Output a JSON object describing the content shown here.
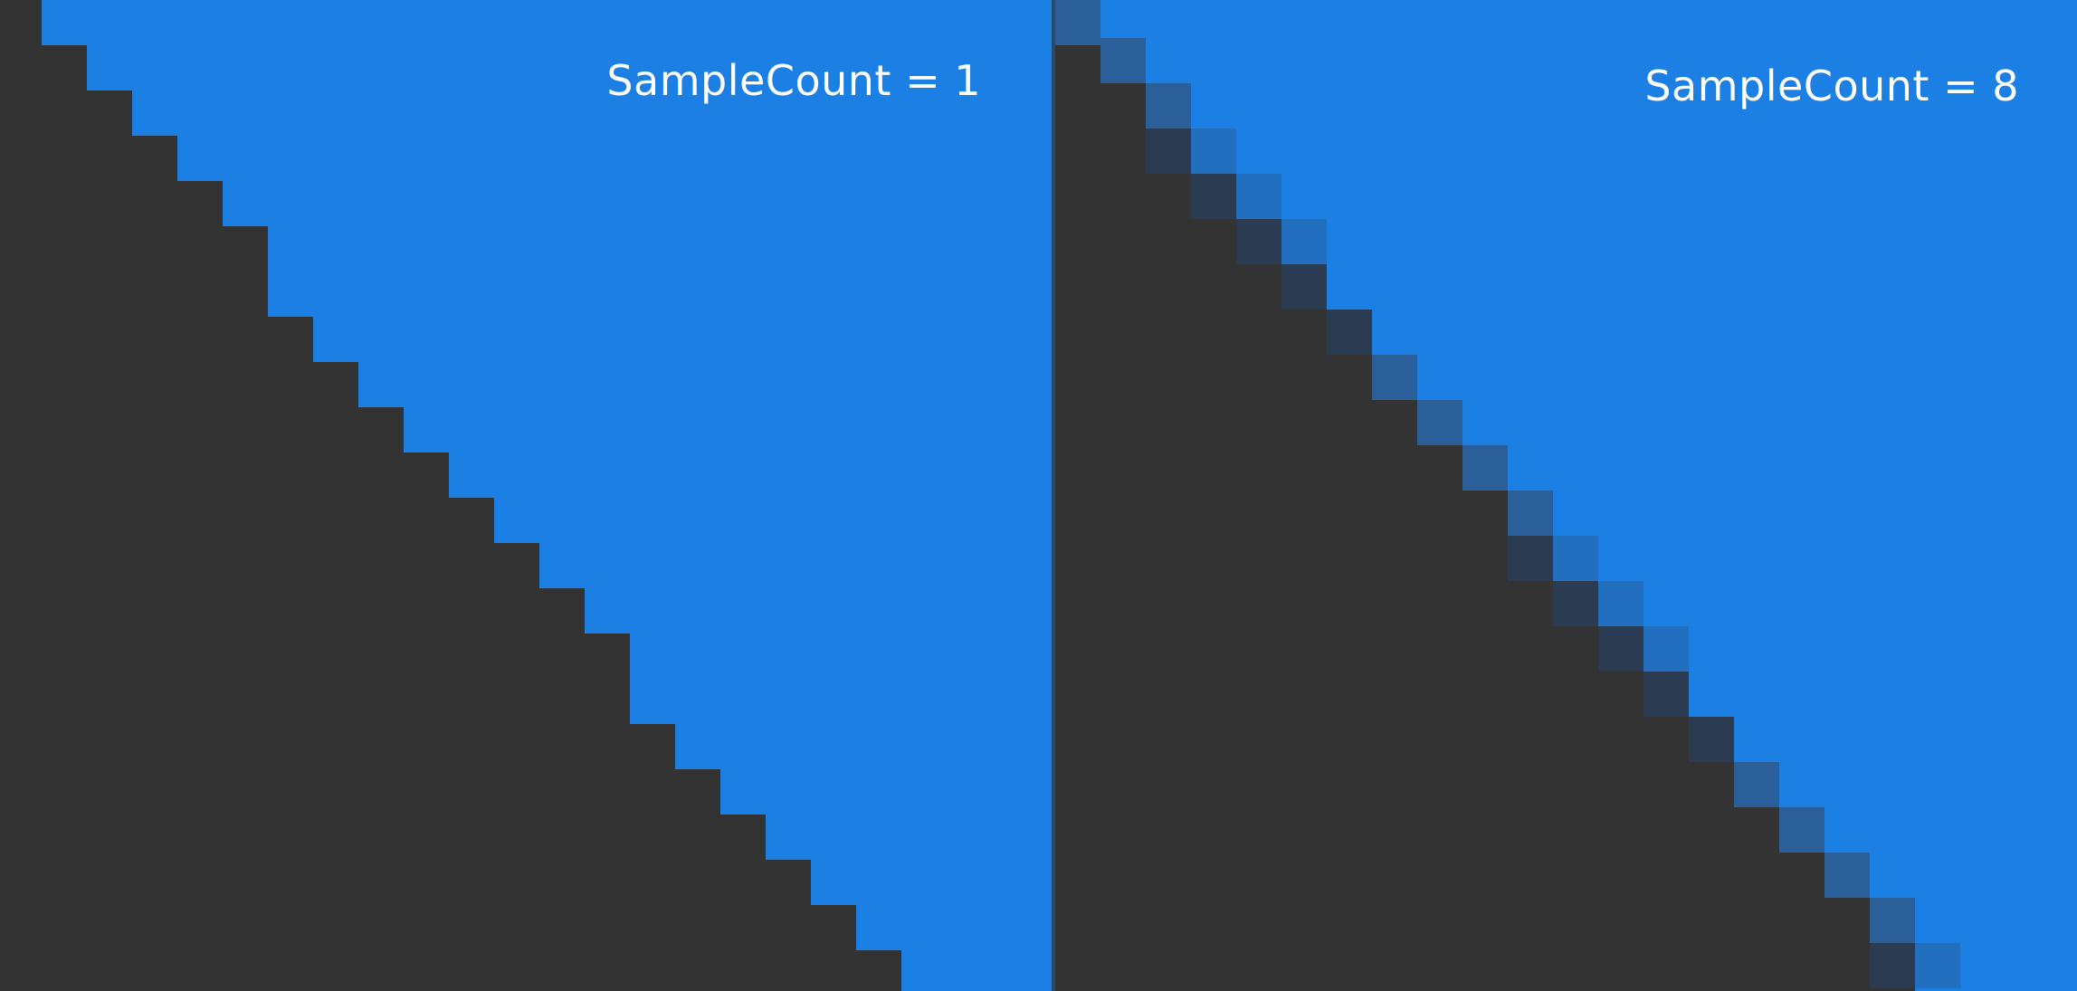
{
  "panels": [
    {
      "label": "SampleCount = 1"
    },
    {
      "label": "SampleCount = 8"
    }
  ],
  "colors": {
    "background": "#1b7fe3",
    "shape_fill": "#333333",
    "divider": "#2a4a6c",
    "edge_dark": "#2b3b52",
    "edge_mid": "#2a5f99",
    "edge_light": "#226fbf"
  }
}
